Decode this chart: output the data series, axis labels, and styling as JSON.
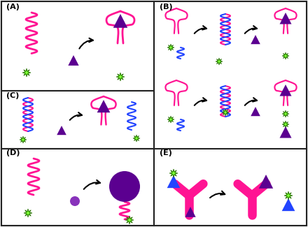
{
  "fig_width": 4.4,
  "fig_height": 3.25,
  "dpi": 100,
  "bg_color": "#ffffff",
  "pink": "#FF1493",
  "dark_purple": "#5B0090",
  "blue": "#2244FF",
  "green": "#44CC00",
  "panel_A": [
    2,
    2,
    218,
    128
  ],
  "panel_B": [
    220,
    2,
    218,
    213
  ],
  "panel_C": [
    2,
    130,
    218,
    83
  ],
  "panel_D": [
    2,
    213,
    218,
    110
  ],
  "panel_E": [
    220,
    213,
    218,
    110
  ]
}
